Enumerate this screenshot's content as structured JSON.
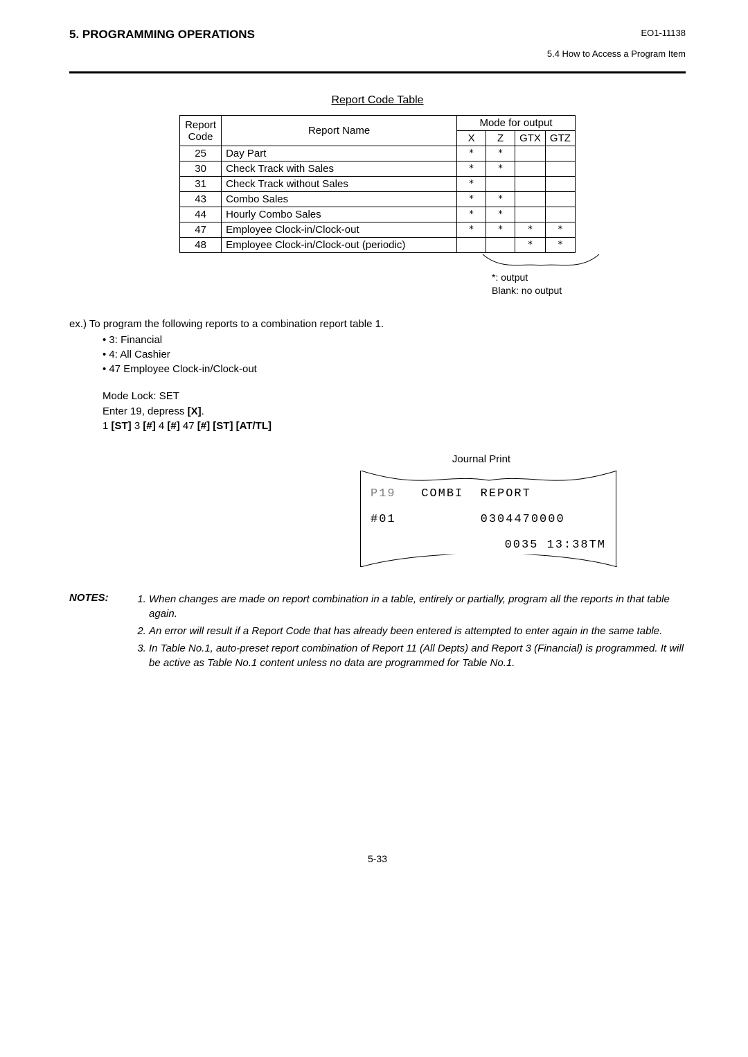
{
  "header": {
    "section": "5.   PROGRAMMING OPERATIONS",
    "manual_code": "EO1-11138",
    "sub": "5.4  How to Access a Program Item"
  },
  "table_title": "Report Code Table",
  "table_headers": {
    "report_code": "Report\nCode",
    "report_name": "Report Name",
    "mode": "Mode for output",
    "cols": [
      "X",
      "Z",
      "GTX",
      "GTZ"
    ]
  },
  "rows": [
    {
      "code": "25",
      "name": "Day Part",
      "m": [
        "*",
        "*",
        "",
        ""
      ]
    },
    {
      "code": "30",
      "name": "Check Track with Sales",
      "m": [
        "*",
        "*",
        "",
        ""
      ]
    },
    {
      "code": "31",
      "name": "Check Track without Sales",
      "m": [
        "*",
        "",
        "",
        ""
      ]
    },
    {
      "code": "43",
      "name": "Combo Sales",
      "m": [
        "*",
        "*",
        "",
        ""
      ]
    },
    {
      "code": "44",
      "name": "Hourly Combo Sales",
      "m": [
        "*",
        "*",
        "",
        ""
      ]
    },
    {
      "code": "47",
      "name": "Employee Clock-in/Clock-out",
      "m": [
        "*",
        "*",
        "*",
        "*"
      ]
    },
    {
      "code": "48",
      "name": "Employee Clock-in/Clock-out (periodic)",
      "m": [
        "",
        "",
        "*",
        "*"
      ]
    }
  ],
  "legend": {
    "line1": "*:  output",
    "line2": "Blank:  no output"
  },
  "example": {
    "intro": "ex.)  To program the following reports to a combination report table 1.",
    "items": [
      "3:  Financial",
      "4:  All Cashier",
      "47 Employee Clock-in/Clock-out"
    ]
  },
  "procedure": {
    "l1": "Mode Lock:  SET",
    "l2_pre": "Enter 19, depress ",
    "l2_b": "[X]",
    "l2_post": ".",
    "l3_parts": [
      "1 ",
      "[ST]",
      "  3 ",
      "[#]",
      "  4 ",
      "[#]",
      "  47 ",
      "[#]  [ST]  [AT/TL]"
    ]
  },
  "journal": {
    "label": "Journal Print",
    "p_code": "P19",
    "title": "COMBI  REPORT",
    "hash": "#01",
    "num": "0304470000",
    "ts": "0035 13:38TM"
  },
  "notes": {
    "label": "NOTES:",
    "items": [
      "When changes are made on report combination in a table, entirely or partially, program all the reports in that table again.",
      "An error will result if a Report Code that has already been entered is attempted to enter again in the same table.",
      "In Table No.1, auto-preset report combination of Report 11 (All Depts) and Report 3 (Financial) is programmed.  It will be active as Table No.1 content unless no data are programmed for Table No.1."
    ]
  },
  "page_number": "5-33",
  "colors": {
    "text": "#000000",
    "bg": "#ffffff",
    "gray": "#808080"
  }
}
